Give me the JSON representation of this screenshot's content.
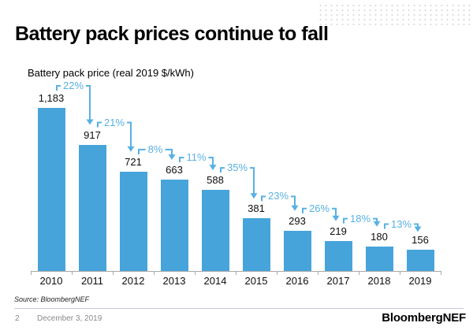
{
  "slide": {
    "title": "Battery pack prices continue to fall"
  },
  "chart_data": {
    "type": "bar",
    "title": "Battery pack prices continue to fall",
    "axis_title": "Battery pack price (real 2019 $/kWh)",
    "categories": [
      "2010",
      "2011",
      "2012",
      "2013",
      "2014",
      "2015",
      "2016",
      "2017",
      "2018",
      "2019"
    ],
    "values": [
      1183,
      917,
      721,
      663,
      588,
      381,
      293,
      219,
      180,
      156
    ],
    "value_labels": [
      "1,183",
      "917",
      "721",
      "663",
      "588",
      "381",
      "293",
      "219",
      "180",
      "156"
    ],
    "percent_declines": [
      "22%",
      "21%",
      "8%",
      "11%",
      "35%",
      "23%",
      "26%",
      "18%",
      "13%"
    ],
    "ylim": [
      0,
      1250
    ],
    "grid": false,
    "legend": false,
    "annotation_style": "bracket-arrow-decline-between-adjacent-bars"
  },
  "footer": {
    "source": "Source: BloombergNEF",
    "page_number": "2",
    "date": "December 3, 2019",
    "logo": "BloombergNEF"
  },
  "colors": {
    "bar": "#46A4DB",
    "annotation": "#58B1E4",
    "axis": "#A8A8A8",
    "text": "#0D0D0D",
    "footer_text": "#8A8A8A"
  }
}
